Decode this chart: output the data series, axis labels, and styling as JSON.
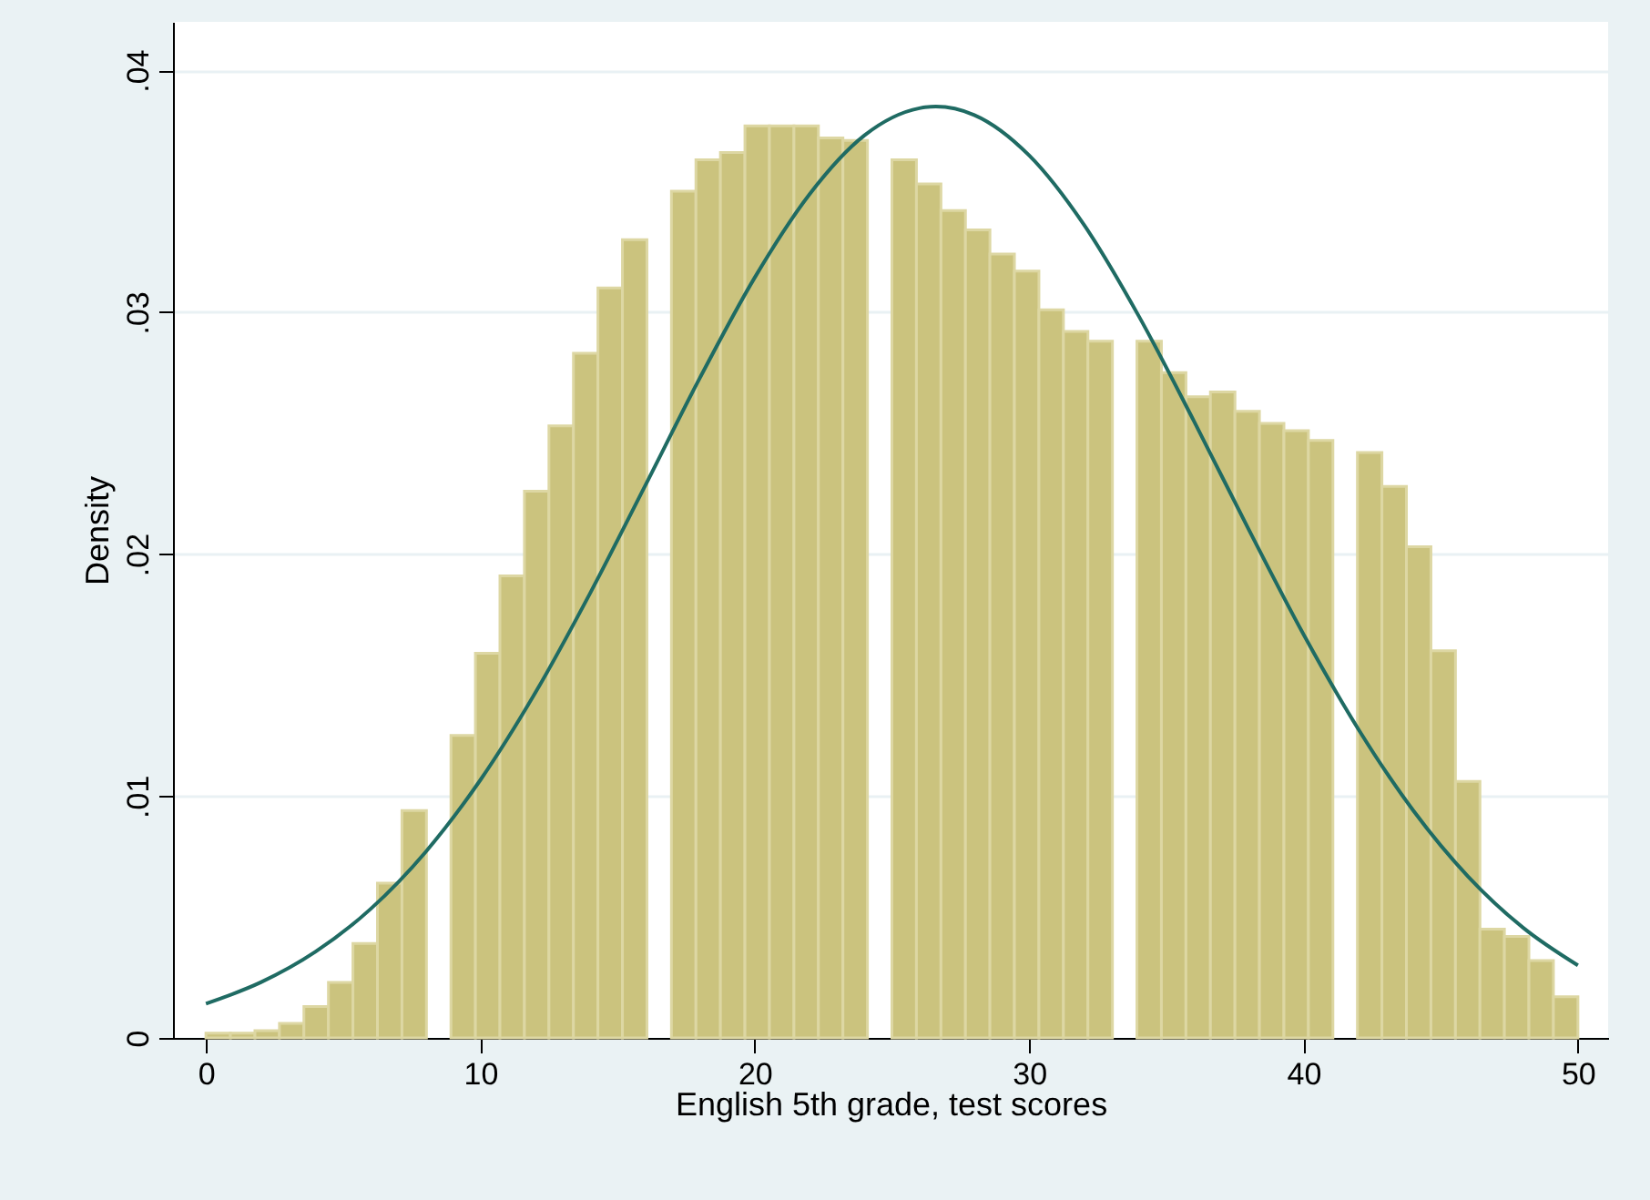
{
  "chart_data": {
    "type": "histogram",
    "xlabel": "English 5th grade, test scores",
    "ylabel": "Density",
    "xlim": [
      -1.2,
      51.1
    ],
    "ylim": [
      0,
      0.042
    ],
    "xticks": [
      0,
      10,
      20,
      30,
      40,
      50
    ],
    "yticks": [
      0,
      {
        "value": 0.01,
        "label": ".01"
      },
      {
        "value": 0.02,
        "label": ".02"
      },
      {
        "value": 0.03,
        "label": ".03"
      },
      {
        "value": 0.04,
        "label": ".04"
      }
    ],
    "grid": "y",
    "series": [
      {
        "color": "#cbc37e",
        "bins": [
          0,
          0.893,
          1.786,
          2.679,
          3.571,
          4.464,
          5.357,
          6.25,
          7.143,
          8.036,
          8.929,
          9.821,
          10.714,
          11.607,
          12.5,
          13.393,
          14.286,
          15.179,
          16.071,
          16.964,
          17.857,
          18.75,
          19.643,
          20.536,
          21.429,
          22.321,
          23.214,
          24.107,
          25,
          25.893,
          26.786,
          27.679,
          28.571,
          29.464,
          30.357,
          31.25,
          32.143,
          33.036,
          33.929,
          34.821,
          35.714,
          36.607,
          37.5,
          38.393,
          39.286,
          40.179,
          41.071,
          41.964,
          42.857,
          43.75,
          44.643,
          45.536,
          46.429,
          47.321,
          48.214,
          49.107,
          50
        ],
        "values": [
          0.0002,
          0.0002,
          0.0003,
          0.0006,
          0.0013,
          0.0023,
          0.0039,
          0.0064,
          0.0094,
          0,
          0.0125,
          0.0159,
          0.0191,
          0.0226,
          0.0253,
          0.0283,
          0.031,
          0.033,
          0,
          0.035,
          0.0363,
          0.0366,
          0.0377,
          0.0377,
          0.0377,
          0.0372,
          0.0371,
          0,
          0.0363,
          0.0353,
          0.0342,
          0.0334,
          0.0324,
          0.0317,
          0.0301,
          0.0292,
          0.0288,
          0,
          0.0288,
          0.0275,
          0.0265,
          0.0267,
          0.0259,
          0.0254,
          0.0251,
          0.0247,
          0,
          0.0242,
          0.0228,
          0.0203,
          0.016,
          0.0106,
          0.0045,
          0.0042,
          0.0032,
          0.0017
        ]
      },
      {
        "type": "line",
        "color": "#1f6b63",
        "x": [
          0,
          2,
          4,
          6,
          8,
          10,
          12,
          14,
          16,
          18,
          20,
          22,
          24,
          26,
          26.6,
          28,
          30,
          32,
          34,
          36,
          38,
          40,
          42,
          44,
          46,
          48,
          50
        ],
        "values": [
          0.00142,
          0.0023,
          0.00357,
          0.00533,
          0.00768,
          0.01066,
          0.01426,
          0.01838,
          0.02281,
          0.02728,
          0.03143,
          0.03488,
          0.03731,
          0.03843,
          0.0385,
          0.03815,
          0.03648,
          0.03361,
          0.02983,
          0.02551,
          0.02102,
          0.01668,
          0.01276,
          0.0094,
          0.00667,
          0.00456,
          0.003
        ]
      }
    ]
  }
}
